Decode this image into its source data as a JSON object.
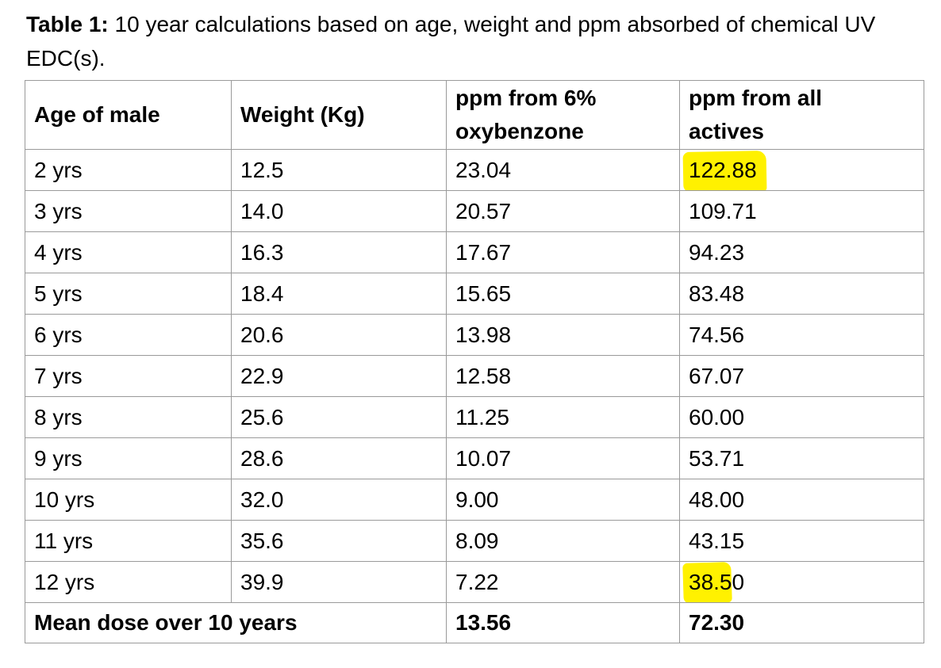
{
  "caption": {
    "label": "Table 1:",
    "text": " 10 year calculations based on age, weight and ppm absorbed of chemical UV EDC(s)."
  },
  "table": {
    "headers": [
      "Age of male",
      "Weight (Kg)",
      "ppm from 6% oxybenzone",
      "ppm from all actives"
    ],
    "rows": [
      {
        "age": "2 yrs",
        "weight": "12.5",
        "ppm_oxybenzone": "23.04",
        "ppm_all": "122.88",
        "highlight": "full"
      },
      {
        "age": "3 yrs",
        "weight": "14.0",
        "ppm_oxybenzone": "20.57",
        "ppm_all": "109.71",
        "highlight": null
      },
      {
        "age": "4 yrs",
        "weight": "16.3",
        "ppm_oxybenzone": "17.67",
        "ppm_all": "94.23",
        "highlight": null
      },
      {
        "age": "5 yrs",
        "weight": "18.4",
        "ppm_oxybenzone": "15.65",
        "ppm_all": "83.48",
        "highlight": null
      },
      {
        "age": "6 yrs",
        "weight": "20.6",
        "ppm_oxybenzone": "13.98",
        "ppm_all": "74.56",
        "highlight": null
      },
      {
        "age": "7 yrs",
        "weight": "22.9",
        "ppm_oxybenzone": "12.58",
        "ppm_all": "67.07",
        "highlight": null
      },
      {
        "age": "8 yrs",
        "weight": "25.6",
        "ppm_oxybenzone": "11.25",
        "ppm_all": "60.00",
        "highlight": null
      },
      {
        "age": "9 yrs",
        "weight": "28.6",
        "ppm_oxybenzone": "10.07",
        "ppm_all": "53.71",
        "highlight": null
      },
      {
        "age": "10 yrs",
        "weight": "32.0",
        "ppm_oxybenzone": "9.00",
        "ppm_all": "48.00",
        "highlight": null
      },
      {
        "age": "11 yrs",
        "weight": "35.6",
        "ppm_oxybenzone": "8.09",
        "ppm_all": "43.15",
        "highlight": null
      },
      {
        "age": "12 yrs",
        "weight": "39.9",
        "ppm_oxybenzone": "7.22",
        "ppm_all": "38.50",
        "highlight": "partial"
      }
    ],
    "footer": {
      "label": "Mean dose over 10 years",
      "ppm_oxybenzone": "13.56",
      "ppm_all": "72.30"
    }
  },
  "colors": {
    "highlight": "#fff100",
    "border": "#9a9a9a",
    "text": "#000000",
    "background": "#ffffff"
  }
}
